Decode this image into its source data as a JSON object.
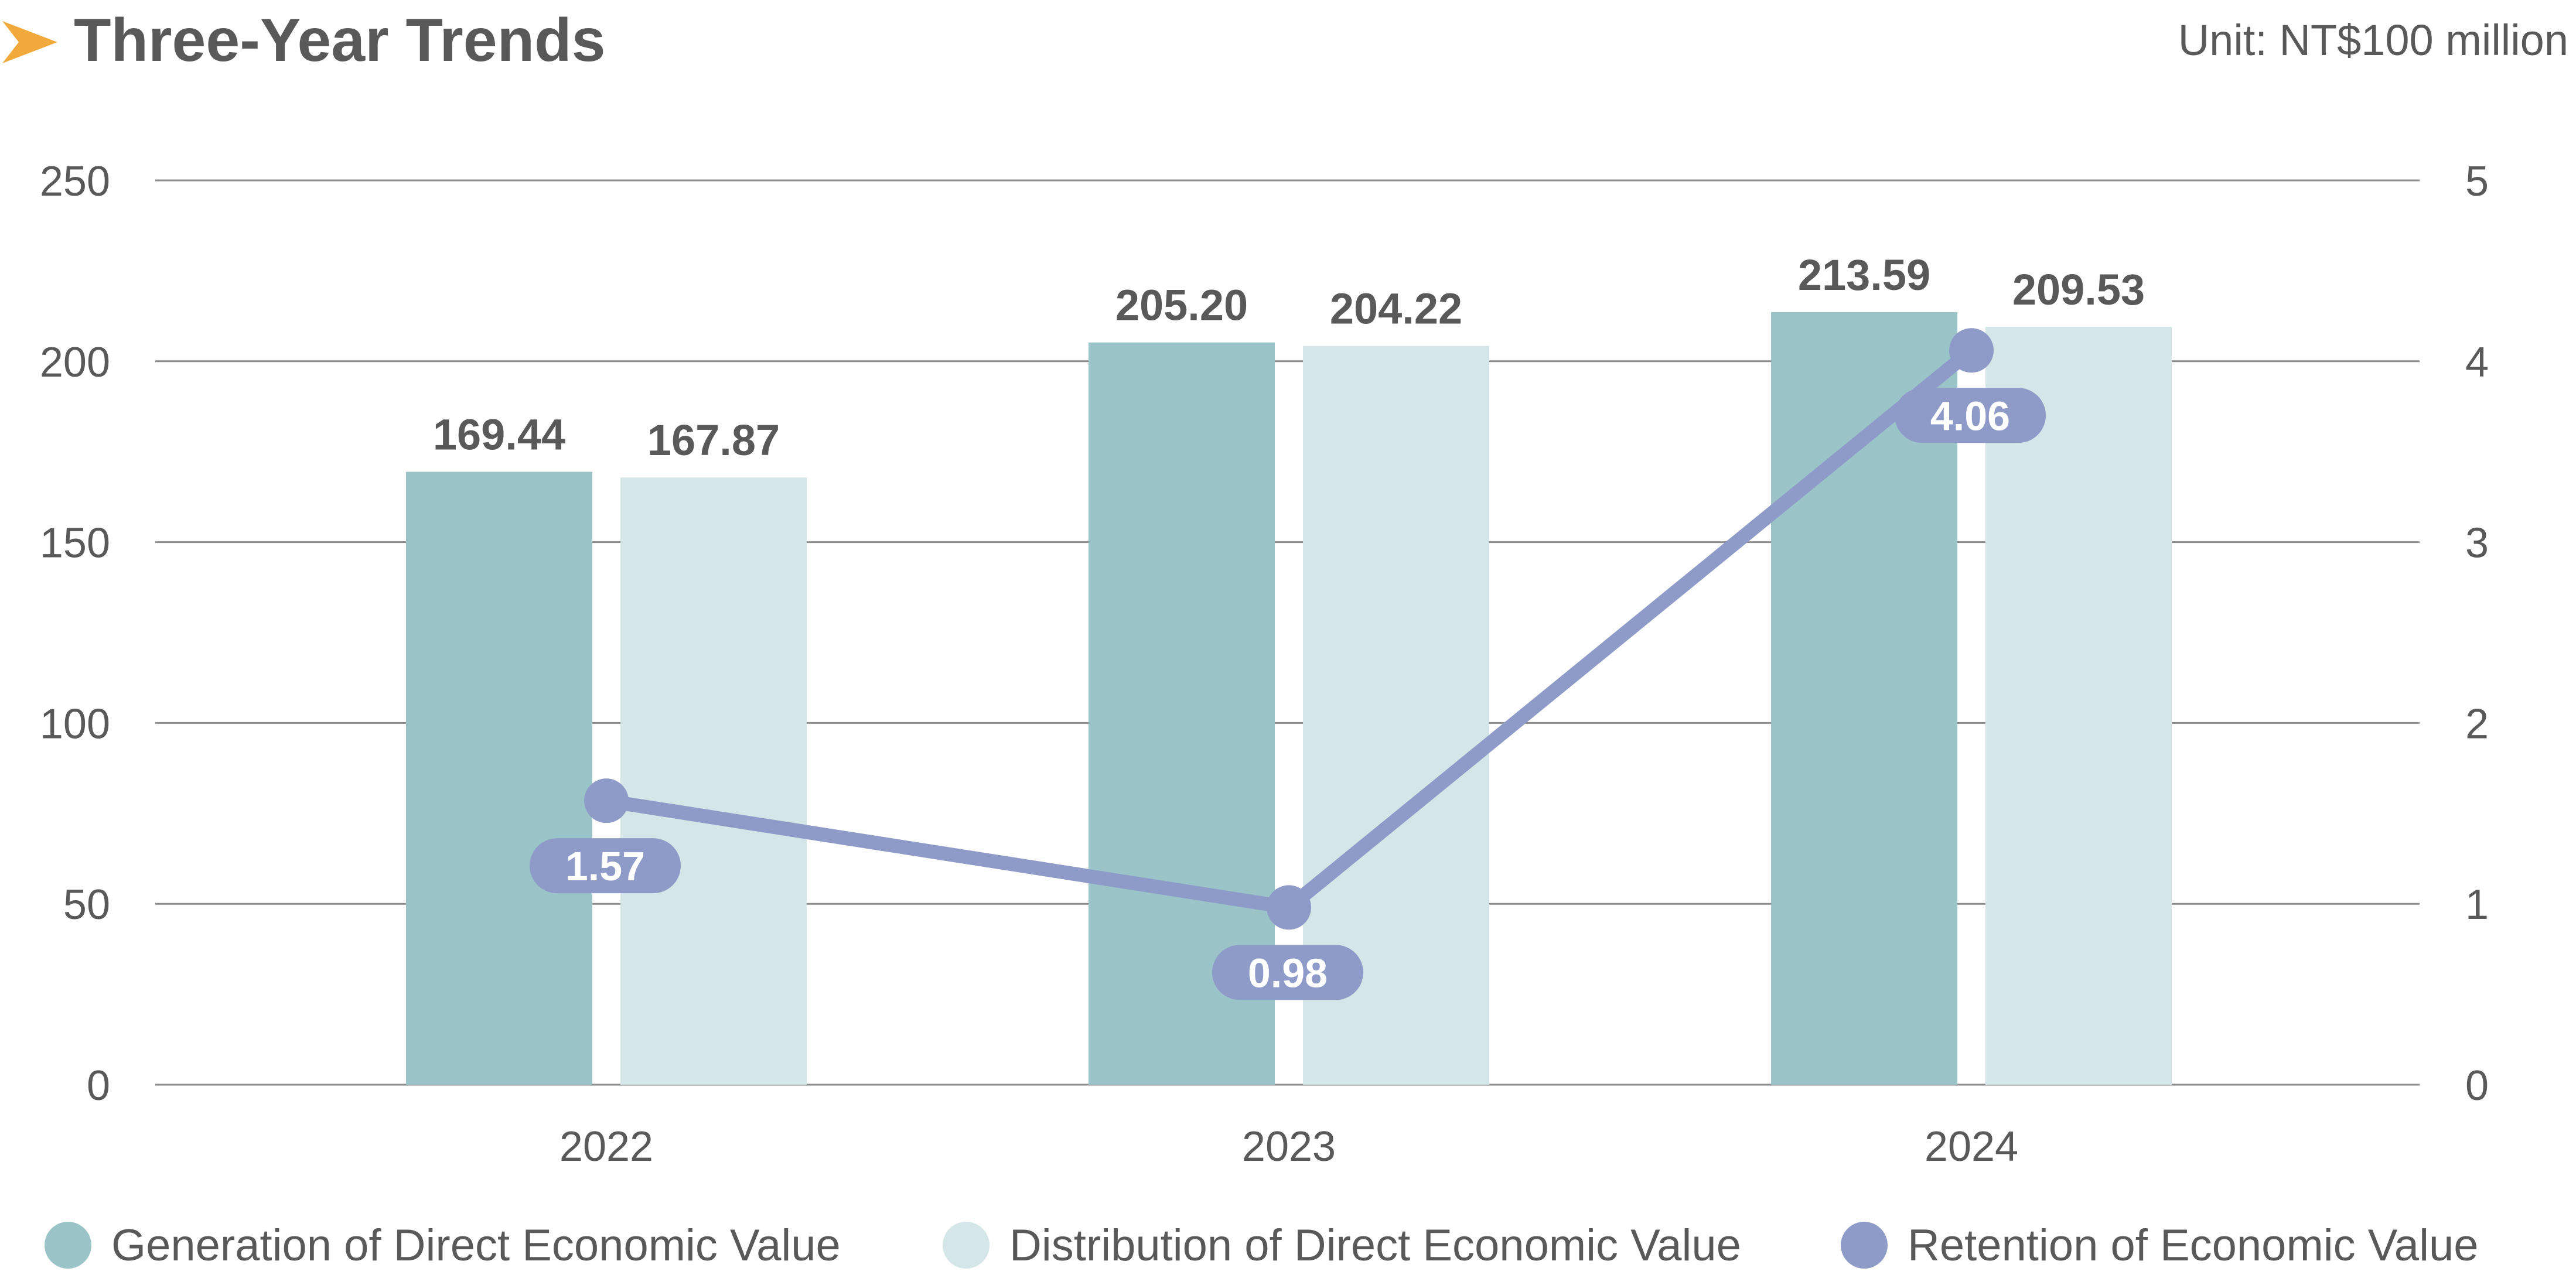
{
  "header": {
    "title": "Three-Year Trends",
    "unit": "Unit: NT$100 million",
    "arrow_icon_color": "#F2A93B"
  },
  "chart_data": {
    "type": "bar",
    "categories": [
      "2022",
      "2023",
      "2024"
    ],
    "series": [
      {
        "name": "Generation of Direct Economic Value",
        "type": "bar",
        "axis": "left",
        "color": "#9BC4C8",
        "values": [
          169.44,
          205.2,
          213.59
        ],
        "labels": [
          "169.44",
          "205.20",
          "213.59"
        ]
      },
      {
        "name": "Distribution of Direct Economic Value",
        "type": "bar",
        "axis": "left",
        "color": "#D4E6E8",
        "values": [
          167.87,
          204.22,
          209.53
        ],
        "labels": [
          "167.87",
          "204.22",
          "209.53"
        ]
      },
      {
        "name": "Retention of Economic Value",
        "type": "line",
        "axis": "right",
        "color": "#8E9BC8",
        "values": [
          1.57,
          0.98,
          4.06
        ],
        "labels": [
          "1.57",
          "0.98",
          "4.06"
        ]
      }
    ],
    "y_left": {
      "min": 0,
      "max": 250,
      "ticks": [
        "0",
        "50",
        "100",
        "150",
        "200",
        "250"
      ]
    },
    "y_right": {
      "min": 0,
      "max": 5,
      "ticks": [
        "0",
        "1",
        "2",
        "3",
        "4",
        "5"
      ]
    },
    "grid": true,
    "legend_position": "bottom"
  }
}
